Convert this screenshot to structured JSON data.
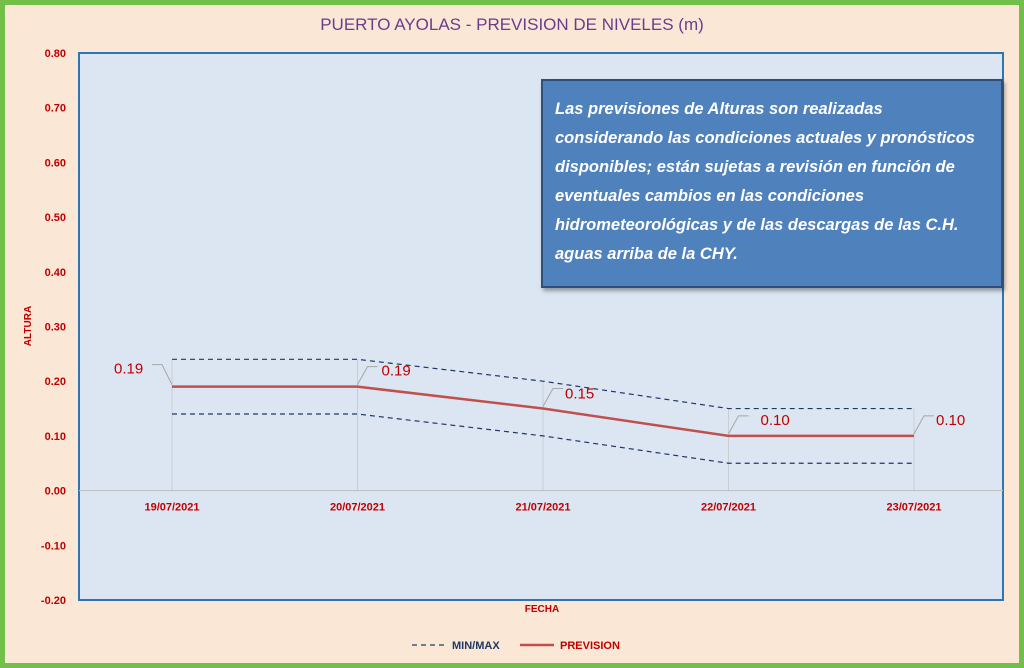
{
  "chart_data": {
    "type": "line",
    "title": "PUERTO AYOLAS - PREVISION DE NIVELES (m)",
    "xlabel": "FECHA",
    "ylabel": "ALTURA",
    "categories": [
      "19/07/2021",
      "20/07/2021",
      "21/07/2021",
      "22/07/2021",
      "23/07/2021"
    ],
    "ylim": [
      -0.2,
      0.8
    ],
    "yticks": [
      "0.80",
      "0.70",
      "0.60",
      "0.50",
      "0.40",
      "0.30",
      "0.20",
      "0.10",
      "0.00",
      "-0.10",
      "-0.20"
    ],
    "series": [
      {
        "name": "PREVISION",
        "values": [
          0.19,
          0.19,
          0.15,
          0.1,
          0.1
        ],
        "color": "#c0504d",
        "style": "solid",
        "labels": [
          "0.19",
          "0.19",
          "0.15",
          "0.10",
          "0.10"
        ]
      },
      {
        "name": "MIN/MAX",
        "role": "max",
        "values": [
          0.24,
          0.24,
          0.2,
          0.15,
          0.15
        ],
        "color": "#1f3864",
        "style": "dashed"
      },
      {
        "name": "MIN/MAX",
        "role": "min",
        "values": [
          0.14,
          0.14,
          0.1,
          0.05,
          0.05
        ],
        "color": "#1f3864",
        "style": "dashed"
      }
    ],
    "legend": [
      "MIN/MAX",
      "PREVISION"
    ],
    "legend_position": "bottom",
    "annotation": "Las previsiones de Alturas son realizadas considerando las condiciones actuales y pronósticos disponibles;  están sujetas a revisión en función de eventuales cambios en las condiciones hidrometeorológicas y de las descargas de las C.H. aguas arriba de la CHY.",
    "colors": {
      "plot_bg": "#dce6f2",
      "plot_border": "#2e75b6",
      "frame_border": "#72c04a",
      "frame_bg": "#fbe7d6",
      "note_bg": "#4f81bd",
      "text_red": "#c00000",
      "title": "#6b3c8c"
    }
  }
}
